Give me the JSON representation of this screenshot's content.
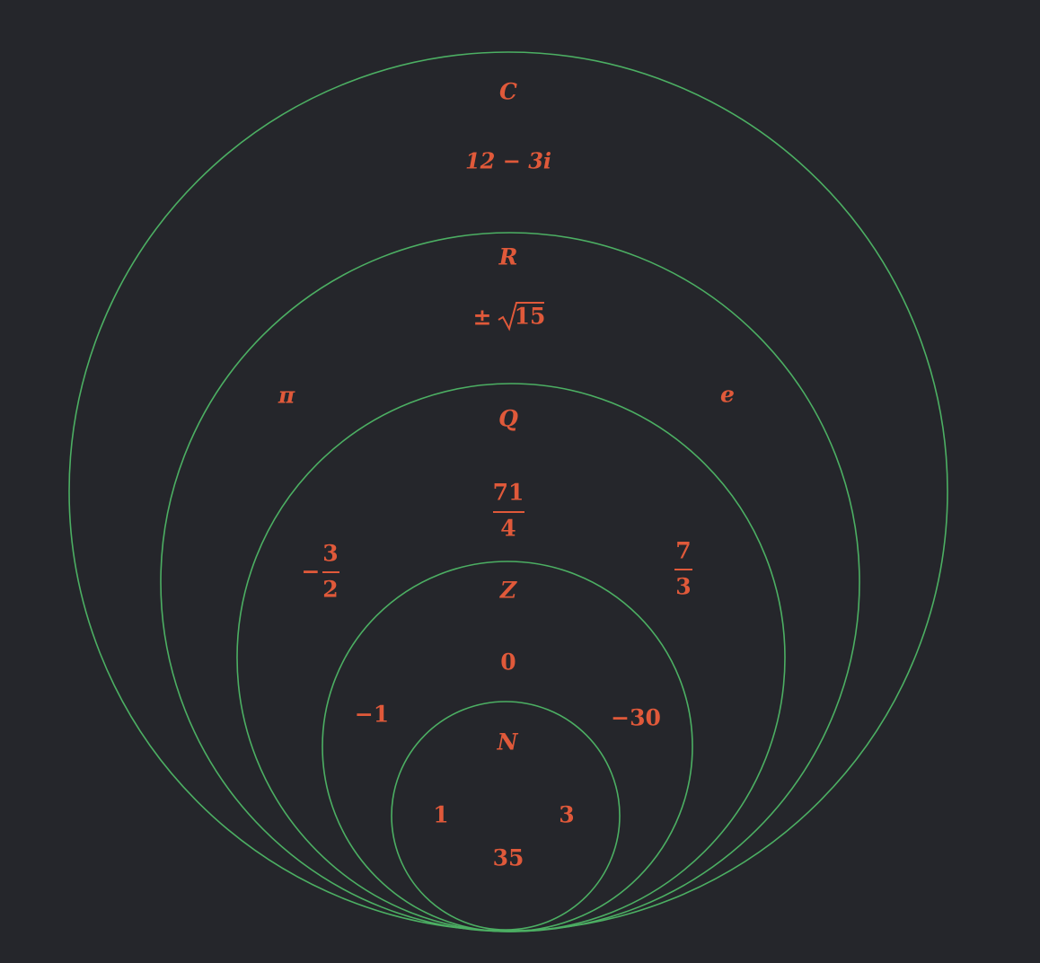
{
  "colors": {
    "background": "#25262b",
    "circle": "#4caf63",
    "label": "#e0593a"
  },
  "sets": {
    "complex": {
      "symbol": "C",
      "examples": {
        "complex_number": "12 − 3i"
      }
    },
    "real": {
      "symbol": "R",
      "examples": {
        "plus_minus": "±",
        "sqrt_radicand": "15",
        "pi": "π",
        "e": "e"
      }
    },
    "rational": {
      "symbol": "Q",
      "examples": {
        "frac_71_4": {
          "numerator": "71",
          "denominator": "4"
        },
        "frac_neg_3_2": {
          "sign": "−",
          "numerator": "3",
          "denominator": "2"
        },
        "frac_7_3": {
          "numerator": "7",
          "denominator": "3"
        }
      }
    },
    "integers": {
      "symbol": "Z",
      "examples": {
        "zero": "0",
        "neg_one": "−1",
        "neg_thirty": "−30"
      }
    },
    "natural": {
      "symbol": "N",
      "examples": {
        "one": "1",
        "three": "3",
        "thirty_five": "35"
      }
    }
  }
}
